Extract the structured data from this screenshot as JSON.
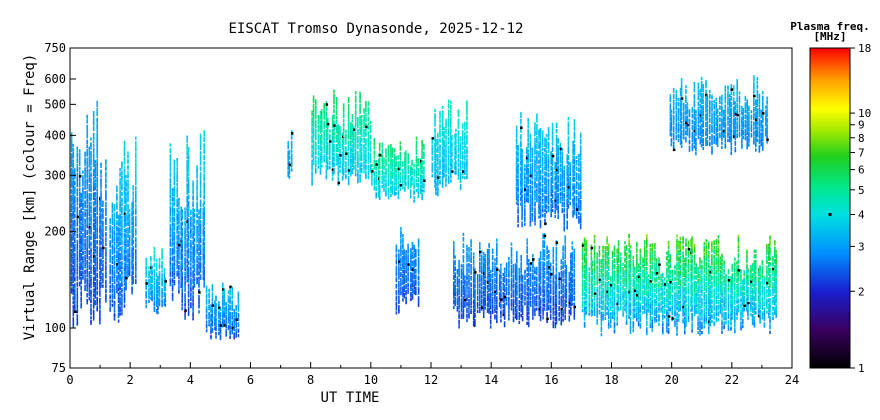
{
  "chart_data": {
    "type": "heatmap",
    "title": "EISCAT Tromso Dynasonde, 2025-12-12",
    "xlabel": "UT TIME",
    "ylabel": "Virtual Range [km] (colour = Freq)",
    "xlim": [
      0,
      24
    ],
    "ylim": [
      75,
      750
    ],
    "yscale": "log",
    "x_ticks": [
      0,
      2,
      4,
      6,
      8,
      10,
      12,
      14,
      16,
      18,
      20,
      22,
      24
    ],
    "x_tick_labels": [
      "0",
      "2",
      "4",
      "6",
      "8",
      "10",
      "12",
      "14",
      "16",
      "18",
      "20",
      "22",
      "24"
    ],
    "y_ticks": [
      75,
      100,
      200,
      300,
      400,
      500,
      600,
      750
    ],
    "y_tick_labels": [
      "75",
      "100",
      "200",
      "300",
      "400",
      "500",
      "600",
      "750"
    ],
    "colorbar": {
      "title_line1": "Plasma freq.",
      "title_line2": "[MHz]",
      "scale": "log",
      "min": 1,
      "max": 18,
      "ticks": [
        1,
        2,
        3,
        4,
        5,
        6,
        7,
        8,
        9,
        10,
        18
      ],
      "tick_labels": [
        "1",
        "2",
        "3",
        "4",
        "5",
        "6",
        "7",
        "8",
        "9",
        "10",
        "18"
      ]
    },
    "echo_regions": [
      {
        "t0": 0.0,
        "t1": 1.2,
        "h_lo": 100,
        "h_hi": 520,
        "f_lo": 2.0,
        "f_hi": 3.4
      },
      {
        "t0": 1.3,
        "t1": 2.2,
        "h_lo": 105,
        "h_hi": 400,
        "f_lo": 2.0,
        "f_hi": 4.2
      },
      {
        "t0": 2.5,
        "t1": 3.2,
        "h_lo": 110,
        "h_hi": 180,
        "f_lo": 2.3,
        "f_hi": 4.5
      },
      {
        "t0": 3.3,
        "t1": 4.5,
        "h_lo": 105,
        "h_hi": 430,
        "f_lo": 2.0,
        "f_hi": 4.2
      },
      {
        "t0": 4.5,
        "t1": 5.6,
        "h_lo": 92,
        "h_hi": 140,
        "f_lo": 2.1,
        "f_hi": 3.8
      },
      {
        "t0": 7.2,
        "t1": 7.4,
        "h_lo": 290,
        "h_hi": 420,
        "f_lo": 2.8,
        "f_hi": 3.5
      },
      {
        "t0": 8.0,
        "t1": 10.0,
        "h_lo": 280,
        "h_hi": 560,
        "f_lo": 3.0,
        "f_hi": 6.0
      },
      {
        "t0": 10.0,
        "t1": 11.8,
        "h_lo": 250,
        "h_hi": 400,
        "f_lo": 3.0,
        "f_hi": 6.2
      },
      {
        "t0": 10.8,
        "t1": 11.6,
        "h_lo": 110,
        "h_hi": 210,
        "f_lo": 2.0,
        "f_hi": 3.2
      },
      {
        "t0": 12.0,
        "t1": 13.2,
        "h_lo": 260,
        "h_hi": 520,
        "f_lo": 3.0,
        "f_hi": 4.5
      },
      {
        "t0": 12.7,
        "t1": 16.8,
        "h_lo": 100,
        "h_hi": 200,
        "f_lo": 2.0,
        "f_hi": 3.2
      },
      {
        "t0": 14.8,
        "t1": 17.0,
        "h_lo": 200,
        "h_hi": 480,
        "f_lo": 2.2,
        "f_hi": 4.0
      },
      {
        "t0": 17.0,
        "t1": 23.5,
        "h_lo": 95,
        "h_hi": 200,
        "f_lo": 2.2,
        "f_hi": 8.0
      },
      {
        "t0": 19.9,
        "t1": 23.2,
        "h_lo": 350,
        "h_hi": 620,
        "f_lo": 2.5,
        "f_hi": 3.6
      }
    ]
  }
}
